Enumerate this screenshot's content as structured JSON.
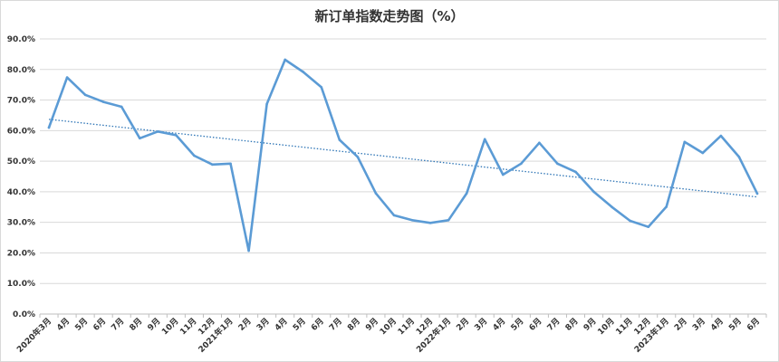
{
  "chart_data": {
    "type": "line",
    "title": "新订单指数走势图（%）",
    "ylim": [
      0,
      90
    ],
    "yticks": [
      "0.0%",
      "10.0%",
      "20.0%",
      "30.0%",
      "40.0%",
      "50.0%",
      "60.0%",
      "70.0%",
      "80.0%",
      "90.0%"
    ],
    "grid": true,
    "legend": "none",
    "categories": [
      "2020年3月",
      "4月",
      "5月",
      "6月",
      "7月",
      "8月",
      "9月",
      "10月",
      "11月",
      "12月",
      "2021年1月",
      "2月",
      "3月",
      "4月",
      "5月",
      "6月",
      "7月",
      "8月",
      "9月",
      "10月",
      "11月",
      "12月",
      "2022年1月",
      "2月",
      "3月",
      "4月",
      "5月",
      "6月",
      "7月",
      "8月",
      "9月",
      "10月",
      "11月",
      "12月",
      "2023年1月",
      "2月",
      "3月",
      "4月",
      "5月",
      "6月"
    ],
    "series": [
      {
        "values": [
          61.0,
          77.4,
          71.7,
          69.4,
          67.8,
          57.5,
          59.7,
          58.5,
          51.8,
          48.9,
          49.2,
          20.7,
          68.7,
          83.2,
          79.2,
          74.2,
          57.0,
          51.4,
          39.5,
          32.3,
          30.7,
          29.8,
          30.7,
          39.5,
          57.2,
          45.6,
          49.2,
          56.0,
          49.2,
          46.5,
          40.0,
          35.0,
          30.5,
          28.5,
          35.1,
          56.3,
          52.7,
          58.3,
          51.4,
          39.4
        ]
      }
    ],
    "trendline": {
      "type": "linear",
      "start": 63.7,
      "end": 38.3
    },
    "colors": {
      "line": "#5b9bd5",
      "trend": "#2e75b6",
      "grid": "#d9d9d9"
    }
  }
}
